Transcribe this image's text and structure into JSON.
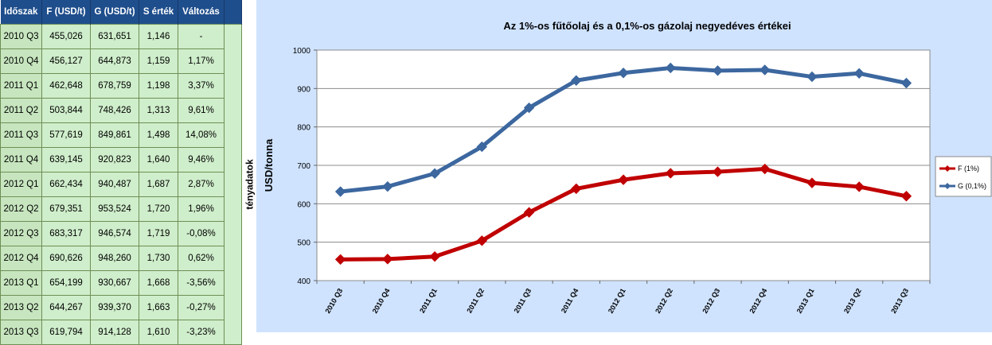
{
  "table": {
    "headers": [
      "Időszak",
      "F (USD/t)",
      "G (USD/t)",
      "S érték",
      "Változás"
    ],
    "side_label": "tényadatok",
    "rows": [
      [
        "2010 Q3",
        "455,026",
        "631,651",
        "1,146",
        "-"
      ],
      [
        "2010 Q4",
        "456,127",
        "644,873",
        "1,159",
        "1,17%"
      ],
      [
        "2011 Q1",
        "462,648",
        "678,759",
        "1,198",
        "3,37%"
      ],
      [
        "2011 Q2",
        "503,844",
        "748,426",
        "1,313",
        "9,61%"
      ],
      [
        "2011 Q3",
        "577,619",
        "849,861",
        "1,498",
        "14,08%"
      ],
      [
        "2011 Q4",
        "639,145",
        "920,823",
        "1,640",
        "9,46%"
      ],
      [
        "2012 Q1",
        "662,434",
        "940,487",
        "1,687",
        "2,87%"
      ],
      [
        "2012 Q2",
        "679,351",
        "953,524",
        "1,720",
        "1,96%"
      ],
      [
        "2012 Q3",
        "683,317",
        "946,574",
        "1,719",
        "-0,08%"
      ],
      [
        "2012 Q4",
        "690,626",
        "948,260",
        "1,730",
        "0,62%"
      ],
      [
        "2013 Q1",
        "654,199",
        "930,667",
        "1,668",
        "-3,56%"
      ],
      [
        "2013 Q2",
        "644,267",
        "939,370",
        "1,663",
        "-0,27%"
      ],
      [
        "2013 Q3",
        "619,794",
        "914,128",
        "1,610",
        "-3,23%"
      ]
    ]
  },
  "chart_data": {
    "type": "line",
    "title": "Az 1%-os fűtőolaj és a 0,1%-os gázolaj negyedéves értékei",
    "ylabel": "USD/tonna",
    "xlabel": "",
    "ylim": [
      400,
      1000
    ],
    "yticks": [
      400,
      500,
      600,
      700,
      800,
      900,
      1000
    ],
    "categories": [
      "2010 Q3",
      "2010 Q4",
      "2011 Q1",
      "2011 Q2",
      "2011 Q3",
      "2011 Q4",
      "2012 Q1",
      "2012 Q2",
      "2012 Q3",
      "2012 Q4",
      "2013 Q1",
      "2013 Q2",
      "2013 Q3"
    ],
    "grid": true,
    "legend_position": "right",
    "series": [
      {
        "name": "F (1%)",
        "color": "#c00000",
        "marker": "diamond",
        "values": [
          455.026,
          456.127,
          462.648,
          503.844,
          577.619,
          639.145,
          662.434,
          679.351,
          683.317,
          690.626,
          654.199,
          644.267,
          619.794
        ]
      },
      {
        "name": "G (0,1%)",
        "color": "#3c679f",
        "marker": "diamond",
        "values": [
          631.651,
          644.873,
          678.759,
          748.426,
          849.861,
          920.823,
          940.487,
          953.524,
          946.574,
          948.26,
          930.667,
          939.37,
          914.128
        ]
      }
    ]
  }
}
